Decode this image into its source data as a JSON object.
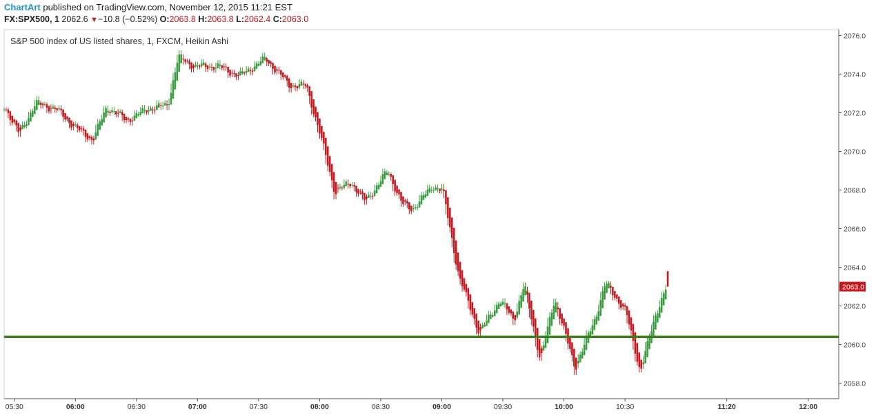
{
  "header": {
    "brand": "ChartArt",
    "published": " published on TradingView.com, November 12, 2015 11:21 EST"
  },
  "quote": {
    "symbol": "FX:SPX500, 1",
    "last": "2062.6",
    "change": "−10.8 (−0.52%)",
    "open_label": "O:",
    "open": "2063.8",
    "high_label": "H:",
    "high": "2063.8",
    "low_label": "L:",
    "low": "2062.4",
    "close_label": "C:",
    "close": "2063.0"
  },
  "study_title": "S&P 500 index of US listed shares, 1, FXCM, Heikin Ashi",
  "colors": {
    "up": "#3a9e3f",
    "down": "#c8191e",
    "support": "#3d7f1f",
    "axis": "#555555"
  },
  "chart_data": {
    "type": "candlestick",
    "style": "Heikin Ashi",
    "interval_minutes": 1,
    "title": "S&P 500 index of US listed shares, 1, FXCM, Heikin Ashi",
    "ylim": [
      2057.2,
      2076.3
    ],
    "y_ticks": [
      "2076.0",
      "2074.0",
      "2072.0",
      "2070.0",
      "2068.0",
      "2066.0",
      "2064.0",
      "2062.0",
      "2060.0",
      "2058.0"
    ],
    "x_ticks": [
      "05:30",
      "06:00",
      "06:30",
      "07:00",
      "07:30",
      "08:00",
      "08:30",
      "09:00",
      "09:30",
      "10:00",
      "10:30",
      "11:20",
      "12:00"
    ],
    "x_range": [
      "05:25",
      "12:15"
    ],
    "last_price_label": "2063.0",
    "horizontal_line": 2060.4,
    "closes": [
      {
        "t": "05:25",
        "c": 2072.3
      },
      {
        "t": "05:32",
        "c": 2070.9
      },
      {
        "t": "05:40",
        "c": 2072.5
      },
      {
        "t": "05:50",
        "c": 2072.2
      },
      {
        "t": "06:00",
        "c": 2071.2
      },
      {
        "t": "06:08",
        "c": 2070.6
      },
      {
        "t": "06:15",
        "c": 2072.3
      },
      {
        "t": "06:25",
        "c": 2071.6
      },
      {
        "t": "06:35",
        "c": 2072.2
      },
      {
        "t": "06:45",
        "c": 2072.4
      },
      {
        "t": "06:50",
        "c": 2074.9
      },
      {
        "t": "06:58",
        "c": 2074.4
      },
      {
        "t": "07:10",
        "c": 2074.4
      },
      {
        "t": "07:20",
        "c": 2073.9
      },
      {
        "t": "07:33",
        "c": 2074.8
      },
      {
        "t": "07:45",
        "c": 2073.4
      },
      {
        "t": "07:53",
        "c": 2073.4
      },
      {
        "t": "08:00",
        "c": 2070.8
      },
      {
        "t": "08:07",
        "c": 2067.9
      },
      {
        "t": "08:15",
        "c": 2068.4
      },
      {
        "t": "08:22",
        "c": 2067.4
      },
      {
        "t": "08:33",
        "c": 2069.0
      },
      {
        "t": "08:40",
        "c": 2067.3
      },
      {
        "t": "08:45",
        "c": 2067.0
      },
      {
        "t": "08:55",
        "c": 2068.2
      },
      {
        "t": "09:00",
        "c": 2068.0
      },
      {
        "t": "09:08",
        "c": 2063.5
      },
      {
        "t": "09:18",
        "c": 2060.6
      },
      {
        "t": "09:28",
        "c": 2062.3
      },
      {
        "t": "09:35",
        "c": 2061.3
      },
      {
        "t": "09:40",
        "c": 2063.1
      },
      {
        "t": "09:48",
        "c": 2059.2
      },
      {
        "t": "09:55",
        "c": 2062.4
      },
      {
        "t": "10:05",
        "c": 2058.8
      },
      {
        "t": "10:15",
        "c": 2061.4
      },
      {
        "t": "10:20",
        "c": 2063.2
      },
      {
        "t": "10:30",
        "c": 2061.7
      },
      {
        "t": "10:37",
        "c": 2058.6
      },
      {
        "t": "10:45",
        "c": 2061.7
      },
      {
        "t": "10:50",
        "c": 2063.0
      }
    ]
  }
}
